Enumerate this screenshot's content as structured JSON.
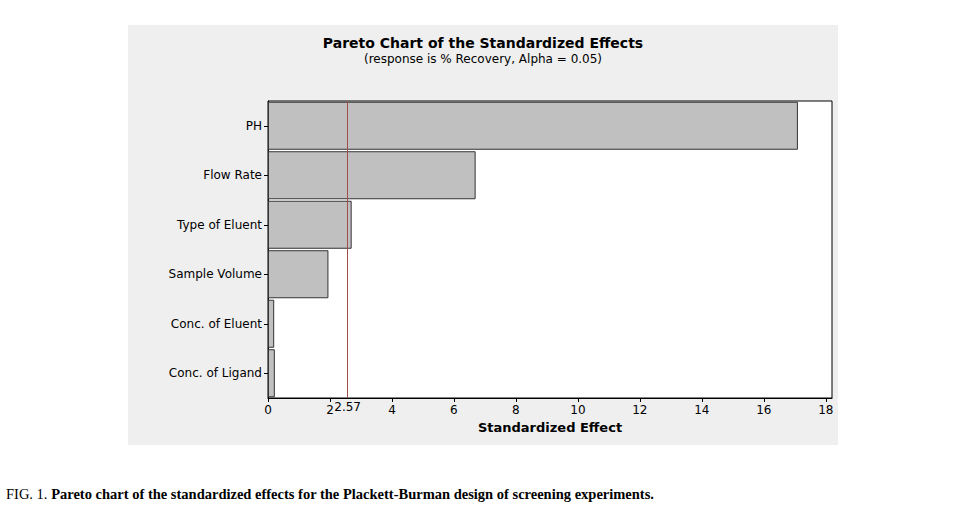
{
  "chart_data": {
    "type": "bar",
    "title": "Pareto Chart of the Standardized Effects",
    "subtitle": "(response is % Recovery, Alpha = 0.05)",
    "xlabel": "Standardized Effect",
    "categories": [
      "PH",
      "Flow Rate",
      "Type of Eluent",
      "Sample Volume",
      "Conc. of Eluent",
      "Conc. of Ligand"
    ],
    "values": [
      17.1,
      6.7,
      2.7,
      1.95,
      0.2,
      0.22
    ],
    "color": "#c0c0c0",
    "orientation": "horizontal",
    "xlim": [
      0,
      18.2
    ],
    "xticks": [
      0,
      2,
      4,
      6,
      8,
      10,
      12,
      14,
      16,
      18
    ],
    "reference_line": 2.57,
    "grid": false,
    "caption_label": "FIG. 1.",
    "caption": "Pareto chart of the standardized effects for the Plackett-Burman design of screening experiments."
  }
}
